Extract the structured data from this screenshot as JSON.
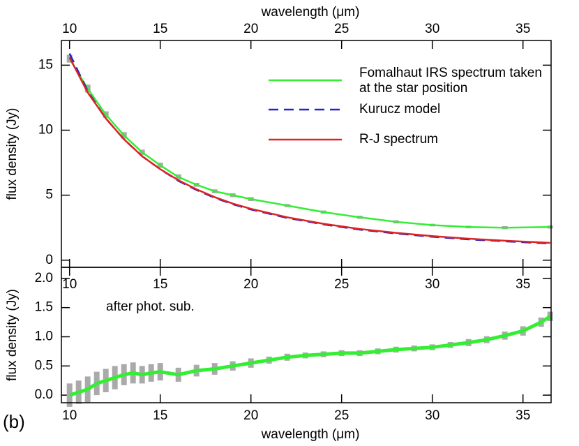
{
  "chart_data": [
    {
      "type": "line",
      "xlabel": "wavelength (μm)",
      "ylabel": "flux density (Jy)",
      "xlim": [
        9.55,
        36.55
      ],
      "xticks": [
        10,
        15,
        20,
        25,
        30,
        35
      ],
      "ylim": [
        -0.55,
        16.9
      ],
      "yticks": [
        0,
        5,
        10,
        15
      ],
      "x": [
        10,
        11,
        12,
        13,
        14,
        15,
        16,
        17,
        18,
        19,
        20,
        22,
        24,
        26,
        28,
        30,
        32,
        34,
        36.5
      ],
      "series": [
        {
          "name": "Fomalhaut IRS spectrum taken at the star position",
          "color": "#33ee33",
          "values": [
            15.5,
            13.2,
            11.2,
            9.6,
            8.3,
            7.3,
            6.4,
            5.8,
            5.3,
            5.0,
            4.7,
            4.2,
            3.7,
            3.3,
            2.95,
            2.7,
            2.55,
            2.5,
            2.55
          ],
          "errors": [
            0.3,
            0.3,
            0.25,
            0.25,
            0.2,
            0.2,
            0.2,
            0.15,
            0.15,
            0.15,
            0.15,
            0.12,
            0.12,
            0.12,
            0.12,
            0.1,
            0.1,
            0.12,
            0.12
          ]
        },
        {
          "name": "Kurucz model",
          "color": "#2222cc",
          "dashed": true,
          "values": [
            15.9,
            13.0,
            10.9,
            9.3,
            8.0,
            7.0,
            6.1,
            5.4,
            4.8,
            4.3,
            3.9,
            3.25,
            2.75,
            2.35,
            2.05,
            1.8,
            1.6,
            1.45,
            1.28
          ]
        },
        {
          "name": "R-J spectrum",
          "color": "#dd2222",
          "values": [
            15.6,
            12.9,
            10.9,
            9.3,
            8.0,
            7.0,
            6.15,
            5.45,
            4.85,
            4.35,
            3.95,
            3.3,
            2.8,
            2.4,
            2.1,
            1.85,
            1.65,
            1.5,
            1.33
          ]
        }
      ]
    },
    {
      "type": "line",
      "xlabel": "wavelength (μm)",
      "ylabel": "flux density (Jy)",
      "annotations": [
        "after phot. sub.",
        "(b)"
      ],
      "xlim": [
        9.55,
        36.55
      ],
      "xticks": [
        10,
        15,
        20,
        25,
        30,
        35
      ],
      "ylim": [
        -0.13,
        2.19
      ],
      "yticks": [
        {
          "value": 0,
          "label": "0.0"
        },
        0.5,
        {
          "value": 1,
          "label": "1.0"
        },
        1.5,
        {
          "value": 2,
          "label": "2.0"
        }
      ],
      "x": [
        10,
        10.5,
        11,
        11.5,
        12,
        12.5,
        13,
        13.5,
        14,
        14.5,
        15,
        16,
        17,
        18,
        19,
        20,
        21,
        22,
        23,
        24,
        25,
        26,
        27,
        28,
        29,
        30,
        31,
        32,
        33,
        34,
        35,
        36,
        36.5
      ],
      "series": [
        {
          "name": "after phot. sub.",
          "color": "#33ee33",
          "values": [
            0.0,
            0.05,
            0.1,
            0.2,
            0.25,
            0.3,
            0.35,
            0.38,
            0.35,
            0.38,
            0.4,
            0.35,
            0.42,
            0.45,
            0.5,
            0.55,
            0.6,
            0.65,
            0.68,
            0.7,
            0.72,
            0.72,
            0.75,
            0.78,
            0.8,
            0.82,
            0.86,
            0.9,
            0.95,
            1.02,
            1.1,
            1.25,
            1.35
          ],
          "errors": [
            0.2,
            0.2,
            0.22,
            0.2,
            0.2,
            0.2,
            0.18,
            0.18,
            0.15,
            0.15,
            0.15,
            0.12,
            0.1,
            0.1,
            0.08,
            0.08,
            0.06,
            0.06,
            0.05,
            0.05,
            0.05,
            0.05,
            0.05,
            0.05,
            0.05,
            0.05,
            0.05,
            0.06,
            0.06,
            0.07,
            0.08,
            0.08,
            0.08
          ]
        }
      ]
    }
  ]
}
